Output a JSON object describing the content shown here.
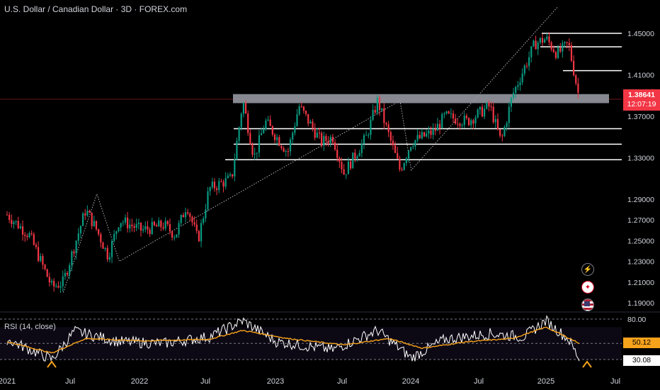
{
  "header": {
    "title": "U.S. Dollar / Canadian Dollar · 3D · FOREX.com"
  },
  "rsi": {
    "label": "RSI (14, close)",
    "value": "50.12",
    "rsi_value": "30.08",
    "levels": {
      "upper": 80,
      "lower": 30
    }
  },
  "price_badge": {
    "price": "1.38641",
    "countdown": "12:07:19",
    "color": "#f23645"
  },
  "icons": [
    "lightning-icon",
    "canada-flag-icon",
    "us-flag-icon"
  ],
  "chart_data": {
    "type": "candlestick",
    "title": "U.S. Dollar / Canadian Dollar · 3D · FOREX.com",
    "y_axis_ticks": [
      "1.45000",
      "1.41000",
      "1.37000",
      "1.33000",
      "1.29000",
      "1.27000",
      "1.25000",
      "1.23000",
      "1.21000",
      "1.19000"
    ],
    "x_axis_ticks": [
      "2021",
      "Jul",
      "2022",
      "Jul",
      "2023",
      "Jul",
      "2024",
      "Jul",
      "2025",
      "Jul"
    ],
    "last_price": 1.38641,
    "resistance_zone": [
      1.384,
      1.39
    ],
    "horizontal_levels": [
      1.45,
      1.437,
      1.414,
      1.358,
      1.343,
      1.328
    ],
    "price_path": [
      [
        "2021-01",
        1.275
      ],
      [
        "2021-03",
        1.255
      ],
      [
        "2021-05",
        1.205
      ],
      [
        "2021-06",
        1.21
      ],
      [
        "2021-08",
        1.28
      ],
      [
        "2021-09",
        1.26
      ],
      [
        "2021-10",
        1.235
      ],
      [
        "2021-11",
        1.27
      ],
      [
        "2022-01",
        1.26
      ],
      [
        "2022-03",
        1.265
      ],
      [
        "2022-04",
        1.255
      ],
      [
        "2022-05",
        1.285
      ],
      [
        "2022-06",
        1.25
      ],
      [
        "2022-07",
        1.3
      ],
      [
        "2022-09",
        1.31
      ],
      [
        "2022-10",
        1.385
      ],
      [
        "2022-11",
        1.33
      ],
      [
        "2022-12",
        1.365
      ],
      [
        "2023-02",
        1.335
      ],
      [
        "2023-03",
        1.38
      ],
      [
        "2023-05",
        1.345
      ],
      [
        "2023-06",
        1.35
      ],
      [
        "2023-07",
        1.315
      ],
      [
        "2023-09",
        1.35
      ],
      [
        "2023-10",
        1.385
      ],
      [
        "2023-12",
        1.318
      ],
      [
        "2024-01",
        1.345
      ],
      [
        "2024-03",
        1.355
      ],
      [
        "2024-04",
        1.37
      ],
      [
        "2024-06",
        1.365
      ],
      [
        "2024-08",
        1.38
      ],
      [
        "2024-09",
        1.345
      ],
      [
        "2024-10",
        1.39
      ],
      [
        "2024-12",
        1.44
      ],
      [
        "2025-01",
        1.445
      ],
      [
        "2025-02",
        1.43
      ],
      [
        "2025-03",
        1.44
      ],
      [
        "2025-04",
        1.385
      ]
    ],
    "rsi_path": [
      [
        "2021-01",
        55
      ],
      [
        "2021-05",
        30
      ],
      [
        "2021-07",
        65
      ],
      [
        "2021-11",
        52
      ],
      [
        "2022-03",
        50
      ],
      [
        "2022-07",
        58
      ],
      [
        "2022-10",
        78
      ],
      [
        "2023-01",
        52
      ],
      [
        "2023-06",
        42
      ],
      [
        "2023-10",
        66
      ],
      [
        "2024-01",
        32
      ],
      [
        "2024-04",
        55
      ],
      [
        "2024-08",
        62
      ],
      [
        "2024-11",
        58
      ],
      [
        "2025-01",
        78
      ],
      [
        "2025-03",
        55
      ],
      [
        "2025-04",
        30
      ]
    ],
    "rsi_ma_path": [
      [
        "2021-01",
        52
      ],
      [
        "2021-05",
        38
      ],
      [
        "2021-08",
        56
      ],
      [
        "2022-01",
        53
      ],
      [
        "2022-07",
        55
      ],
      [
        "2022-10",
        66
      ],
      [
        "2023-02",
        56
      ],
      [
        "2023-07",
        48
      ],
      [
        "2023-11",
        56
      ],
      [
        "2024-02",
        44
      ],
      [
        "2024-06",
        52
      ],
      [
        "2024-10",
        56
      ],
      [
        "2025-01",
        70
      ],
      [
        "2025-04",
        50
      ]
    ]
  }
}
